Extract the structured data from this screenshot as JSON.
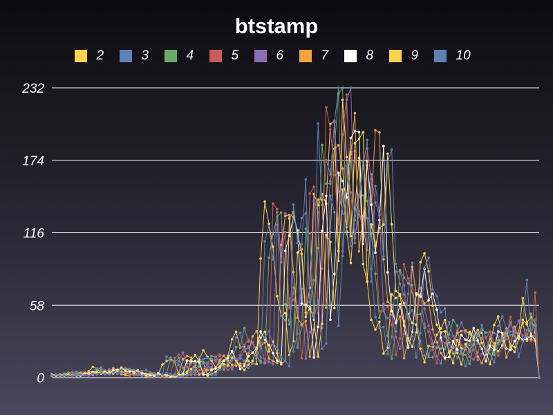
{
  "chart_data": {
    "type": "line",
    "title": "btstamp",
    "xlabel": "",
    "ylabel": "",
    "ylim": [
      0,
      232
    ],
    "yticks": [
      0,
      58,
      116,
      174,
      232
    ],
    "grid": true,
    "legend_position": "top",
    "x_count": 120,
    "base": [
      2,
      2,
      3,
      3,
      4,
      4,
      3,
      4,
      3,
      5,
      7,
      6,
      5,
      4,
      5,
      5,
      4,
      3,
      2,
      2,
      3,
      2,
      2,
      1,
      1,
      2,
      3,
      14,
      16,
      15,
      10,
      2,
      3,
      5,
      8,
      10,
      12,
      18,
      17,
      12,
      8,
      10,
      14,
      20,
      28,
      32,
      27,
      25,
      16,
      14,
      12,
      118,
      122,
      120,
      110,
      55,
      50,
      60,
      20,
      35,
      120,
      130,
      45,
      95,
      185,
      175,
      140,
      160,
      215,
      225,
      100,
      150,
      140,
      120,
      160,
      168,
      110,
      70,
      55,
      50,
      40,
      20,
      30,
      75,
      80,
      70,
      60,
      55,
      45,
      35,
      20,
      15,
      25,
      22,
      30,
      35,
      38,
      34,
      25,
      20,
      12,
      22,
      28,
      32,
      35,
      30,
      20,
      25,
      38,
      40,
      38,
      36,
      34,
      32,
      36,
      65,
      45,
      40,
      38,
      0
    ],
    "series": [
      {
        "name": "2",
        "color": "#ffd44d",
        "lag": 0
      },
      {
        "name": "3",
        "color": "#5f82b5",
        "lag": 1
      },
      {
        "name": "4",
        "color": "#6aaa6a",
        "lag": 2
      },
      {
        "name": "5",
        "color": "#cc5b55",
        "lag": 3
      },
      {
        "name": "6",
        "color": "#8a6fb6",
        "lag": 4
      },
      {
        "name": "7",
        "color": "#f0a440",
        "lag": 5
      },
      {
        "name": "8",
        "color": "#ffffff",
        "lag": 6
      },
      {
        "name": "9",
        "color": "#ffd44d",
        "lag": 7
      },
      {
        "name": "10",
        "color": "#5f82b5",
        "lag": 8
      }
    ]
  }
}
